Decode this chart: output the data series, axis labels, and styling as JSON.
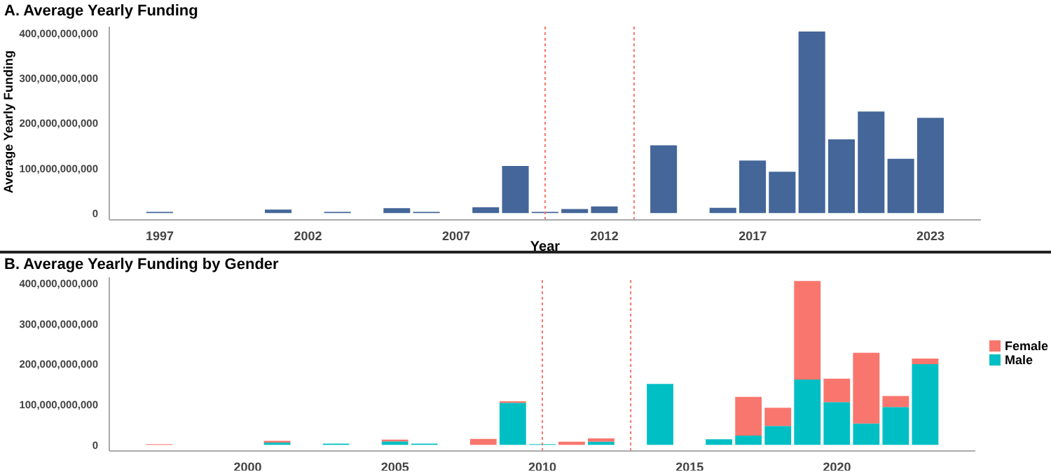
{
  "chart_data": [
    {
      "type": "bar",
      "title": "A. Average Yearly Funding",
      "xlabel": "Year",
      "ylabel": "Average Yearly Funding",
      "x": [
        1997,
        2001,
        2003,
        2005,
        2006,
        2008,
        2009,
        2010,
        2011,
        2012,
        2014,
        2016,
        2017,
        2018,
        2019,
        2020,
        2021,
        2022,
        2023
      ],
      "values": [
        3000000000,
        8000000000,
        3000000000,
        11000000000,
        3000000000,
        13000000000,
        105000000000,
        3000000000,
        9000000000,
        15000000000,
        151000000000,
        12000000000,
        117000000000,
        92000000000,
        404000000000,
        164000000000,
        226000000000,
        121000000000,
        212000000000
      ],
      "color": "#446699",
      "xlim": [
        1995.3,
        2024.7
      ],
      "xticks": [
        1997,
        2002,
        2007,
        2012,
        2017,
        2023
      ],
      "ylim": [
        -15000000000,
        415000000000
      ],
      "yticks": [
        0,
        {
          "value": 100000000000,
          "label": "100,000,000,000"
        },
        {
          "value": 200000000000,
          "label": "200,000,000,000"
        },
        {
          "value": 300000000000,
          "label": "300,000,000,000"
        },
        {
          "value": 400000000000,
          "label": "400,000,000,000"
        }
      ],
      "ref_lines": [
        {
          "axis": "x",
          "value": 2010,
          "color": "#f8766d",
          "line_style": "dotted"
        },
        {
          "axis": "x",
          "value": 2013,
          "color": "#f8766d",
          "line_style": "dotted"
        }
      ],
      "grid": false,
      "legend": false
    },
    {
      "type": "bar",
      "title": "B. Average Yearly Funding by Gender",
      "stacked": true,
      "x": [
        1997,
        2001,
        2003,
        2005,
        2006,
        2008,
        2009,
        2010,
        2011,
        2012,
        2014,
        2016,
        2017,
        2018,
        2019,
        2020,
        2021,
        2022,
        2023
      ],
      "series": [
        {
          "name": "Male",
          "color": "#00bfc4",
          "values": [
            null,
            6000000000,
            3000000000,
            9000000000,
            3000000000,
            null,
            104000000000,
            2000000000,
            null,
            8000000000,
            151000000000,
            14000000000,
            23000000000,
            47000000000,
            162000000000,
            106000000000,
            53000000000,
            94000000000,
            200000000000
          ]
        },
        {
          "name": "Female",
          "color": "#f8766d",
          "values": [
            2000000000,
            4000000000,
            null,
            4000000000,
            null,
            15000000000,
            4000000000,
            null,
            8000000000,
            8000000000,
            null,
            null,
            96000000000,
            45000000000,
            244000000000,
            58000000000,
            175000000000,
            27000000000,
            14000000000
          ]
        }
      ],
      "xlim": [
        1995.3,
        2024.7
      ],
      "xticks": [
        2000,
        2005,
        2010,
        2015,
        2020
      ],
      "ylim": [
        -15000000000,
        415000000000
      ],
      "yticks": [
        0,
        {
          "value": 100000000000,
          "label": "100,000,000,000"
        },
        {
          "value": 200000000000,
          "label": "200,000,000,000"
        },
        {
          "value": 300000000000,
          "label": "300,000,000,000"
        },
        {
          "value": 400000000000,
          "label": "400,000,000,000"
        }
      ],
      "ref_lines": [
        {
          "axis": "x",
          "value": 2010,
          "color": "#f8766d",
          "line_style": "dotted"
        },
        {
          "axis": "x",
          "value": 2013,
          "color": "#f8766d",
          "line_style": "dotted"
        }
      ],
      "grid": false,
      "legend": "right"
    }
  ]
}
